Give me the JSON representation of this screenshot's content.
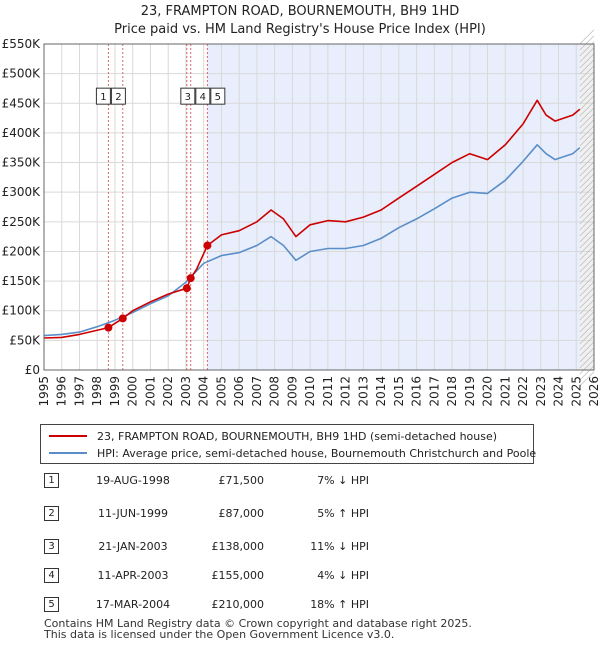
{
  "title_line1": "23, FRAMPTON ROAD, BOURNEMOUTH, BH9 1HD",
  "title_line2": "Price paid vs. HM Land Registry's House Price Index (HPI)",
  "legend": {
    "property": "23, FRAMPTON ROAD, BOURNEMOUTH, BH9 1HD (semi-detached house)",
    "hpi": "HPI: Average price, semi-detached house, Bournemouth Christchurch and Poole",
    "property_color": "#cc0000",
    "hpi_color": "#5b8ec9"
  },
  "sales": [
    {
      "num": "1",
      "date": "19-AUG-1998",
      "price": "£71,500",
      "hpi": "7% ↓ HPI"
    },
    {
      "num": "2",
      "date": "11-JUN-1999",
      "price": "£87,000",
      "hpi": "5% ↑ HPI"
    },
    {
      "num": "3",
      "date": "21-JAN-2003",
      "price": "£138,000",
      "hpi": "11% ↓ HPI"
    },
    {
      "num": "4",
      "date": "11-APR-2003",
      "price": "£155,000",
      "hpi": "4% ↓ HPI"
    },
    {
      "num": "5",
      "date": "17-MAR-2004",
      "price": "£210,000",
      "hpi": "18% ↑ HPI"
    }
  ],
  "footer_line1": "Contains HM Land Registry data © Crown copyright and database right 2025.",
  "footer_line2": "This data is licensed under the Open Government Licence v3.0.",
  "chart_data": {
    "type": "line",
    "title": "23, FRAMPTON ROAD, BOURNEMOUTH, BH9 1HD — Price paid vs. HM Land Registry's House Price Index (HPI)",
    "xlim": [
      1995,
      2026
    ],
    "ylim": [
      0,
      550000
    ],
    "y_ticks": [
      0,
      50000,
      100000,
      150000,
      200000,
      250000,
      300000,
      350000,
      400000,
      450000,
      500000,
      550000
    ],
    "y_tick_labels": [
      "£0",
      "£50K",
      "£100K",
      "£150K",
      "£200K",
      "£250K",
      "£300K",
      "£350K",
      "£400K",
      "£450K",
      "£500K",
      "£550K"
    ],
    "x_ticks": [
      1995,
      1996,
      1997,
      1998,
      1999,
      2000,
      2001,
      2002,
      2003,
      2004,
      2005,
      2006,
      2007,
      2008,
      2009,
      2010,
      2011,
      2012,
      2013,
      2014,
      2015,
      2016,
      2017,
      2018,
      2019,
      2020,
      2021,
      2022,
      2023,
      2024,
      2025,
      2026
    ],
    "x_tick_labels": [
      "1995",
      "1996",
      "1997",
      "1998",
      "1999",
      "2000",
      "2001",
      "2002",
      "2003",
      "2004",
      "2005",
      "2006",
      "2007",
      "2008",
      "2009",
      "2010",
      "2011",
      "2012",
      "2013",
      "2014",
      "2015",
      "2016",
      "2017",
      "2018",
      "2019",
      "2020",
      "2021",
      "2022",
      "2023",
      "2024",
      "2025",
      "2026"
    ],
    "shaded_start": 2004.2,
    "shaded_end": 2025.2,
    "future_start": 2025.2,
    "series": [
      {
        "name": "23, FRAMPTON ROAD, BOURNEMOUTH, BH9 1HD (semi-detached house)",
        "color": "#cc0000",
        "x": [
          1995,
          1996,
          1997,
          1998.63,
          1999.44,
          2000,
          2001,
          2002,
          2003.05,
          2003.27,
          2003.6,
          2004.21,
          2005,
          2006,
          2007,
          2007.8,
          2008.5,
          2009.2,
          2010,
          2011,
          2012,
          2013,
          2014,
          2015,
          2016,
          2017,
          2018,
          2019,
          2020,
          2021,
          2022,
          2022.8,
          2023.3,
          2023.8,
          2024.3,
          2024.8,
          2025.2
        ],
        "y": [
          54000,
          55000,
          60000,
          71500,
          87000,
          100000,
          115000,
          128000,
          138000,
          155000,
          170000,
          210000,
          228000,
          235000,
          250000,
          270000,
          255000,
          225000,
          245000,
          252000,
          250000,
          258000,
          270000,
          290000,
          310000,
          330000,
          350000,
          365000,
          355000,
          380000,
          415000,
          455000,
          430000,
          420000,
          425000,
          430000,
          440000
        ]
      },
      {
        "name": "HPI: Average price, semi-detached house, Bournemouth Christchurch and Poole",
        "color": "#5b8ec9",
        "x": [
          1995,
          1996,
          1997,
          1998,
          1999,
          2000,
          2001,
          2002,
          2003,
          2004,
          2005,
          2006,
          2007,
          2007.8,
          2008.5,
          2009.2,
          2010,
          2011,
          2012,
          2013,
          2014,
          2015,
          2016,
          2017,
          2018,
          2019,
          2020,
          2021,
          2022,
          2022.8,
          2023.3,
          2023.8,
          2024.3,
          2024.8,
          2025.2
        ],
        "y": [
          58000,
          60000,
          64000,
          73000,
          84000,
          97000,
          112000,
          125000,
          148000,
          180000,
          193000,
          198000,
          210000,
          225000,
          210000,
          185000,
          200000,
          205000,
          205000,
          210000,
          222000,
          240000,
          255000,
          272000,
          290000,
          300000,
          298000,
          320000,
          352000,
          380000,
          365000,
          355000,
          360000,
          365000,
          375000
        ]
      }
    ],
    "sales_points": [
      {
        "label": "1",
        "x": 1998.63,
        "y": 71500
      },
      {
        "label": "2",
        "x": 1999.44,
        "y": 87000
      },
      {
        "label": "3",
        "x": 2003.05,
        "y": 138000
      },
      {
        "label": "4",
        "x": 2003.27,
        "y": 155000
      },
      {
        "label": "5",
        "x": 2004.21,
        "y": 210000
      }
    ]
  }
}
